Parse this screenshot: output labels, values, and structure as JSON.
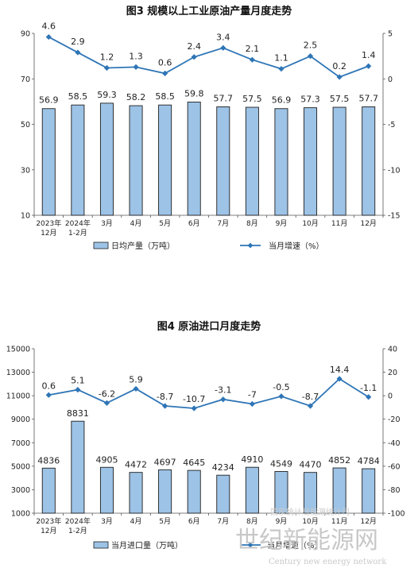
{
  "chart_data": [
    {
      "type": "bar",
      "title": "图3  规模以上工业原油产量月度走势",
      "categories": [
        [
          "2023年",
          "12月"
        ],
        [
          "2024年",
          "1-2月"
        ],
        [
          "3月"
        ],
        [
          "4月"
        ],
        [
          "5月"
        ],
        [
          "6月"
        ],
        [
          "7月"
        ],
        [
          "8月"
        ],
        [
          "9月"
        ],
        [
          "10月"
        ],
        [
          "11月"
        ],
        [
          "12月"
        ]
      ],
      "series": [
        {
          "name": "日均产量（万吨）",
          "type": "bar",
          "axis": "left",
          "values": [
            56.9,
            58.5,
            59.3,
            58.2,
            58.5,
            59.8,
            57.7,
            57.5,
            56.9,
            57.3,
            57.5,
            57.7
          ]
        },
        {
          "name": "当月增速（%）",
          "type": "line",
          "axis": "right",
          "values": [
            4.6,
            2.9,
            1.2,
            1.3,
            0.6,
            2.4,
            3.4,
            2.1,
            1.1,
            2.5,
            0.2,
            1.4
          ]
        }
      ],
      "ylim_left": [
        10,
        90
      ],
      "yticks_left": [
        "10",
        "30",
        "50",
        "70",
        "90"
      ],
      "ylim_right": [
        -15,
        5
      ],
      "yticks_right": [
        "-15",
        "-10",
        "-5",
        "0",
        "5"
      ],
      "legend": "bottom",
      "colors": {
        "bar_fill": "#9dc3e6",
        "bar_stroke": "#1f1f1f",
        "line": "#2e75b6"
      }
    },
    {
      "type": "bar",
      "title": "图4  原油进口月度走势",
      "categories": [
        [
          "2023年",
          "12月"
        ],
        [
          "2024年",
          "1-2月"
        ],
        [
          "3月"
        ],
        [
          "4月"
        ],
        [
          "5月"
        ],
        [
          "6月"
        ],
        [
          "7月"
        ],
        [
          "8月"
        ],
        [
          "9月"
        ],
        [
          "10月"
        ],
        [
          "11月"
        ],
        [
          "12月"
        ]
      ],
      "series": [
        {
          "name": "当月进口量（万吨）",
          "type": "bar",
          "axis": "left",
          "values": [
            4836,
            8831,
            4905,
            4472,
            4697,
            4645,
            4234,
            4910,
            4549,
            4470,
            4852,
            4784
          ]
        },
        {
          "name": "当月增速（%）",
          "type": "line",
          "axis": "right",
          "values": [
            0.6,
            5.1,
            -6.2,
            5.9,
            -8.7,
            -10.7,
            -3.1,
            -7.0,
            -0.5,
            -8.7,
            14.4,
            -1.1
          ]
        }
      ],
      "ylim_left": [
        1000,
        15000
      ],
      "yticks_left": [
        "1000",
        "3000",
        "5000",
        "7000",
        "9000",
        "11000",
        "13000",
        "15000"
      ],
      "ylim_right": [
        -100,
        40
      ],
      "yticks_right": [
        "-100",
        "-80",
        "-60",
        "-40",
        "-20",
        "0",
        "20",
        "40"
      ],
      "legend": "bottom",
      "colors": {
        "bar_fill": "#9dc3e6",
        "bar_stroke": "#1f1f1f",
        "line": "#2e75b6"
      }
    }
  ],
  "watermark": {
    "main": "世纪新能源网",
    "sub": "Century new energy network",
    "overlay": "国家统计局能源统计司"
  }
}
